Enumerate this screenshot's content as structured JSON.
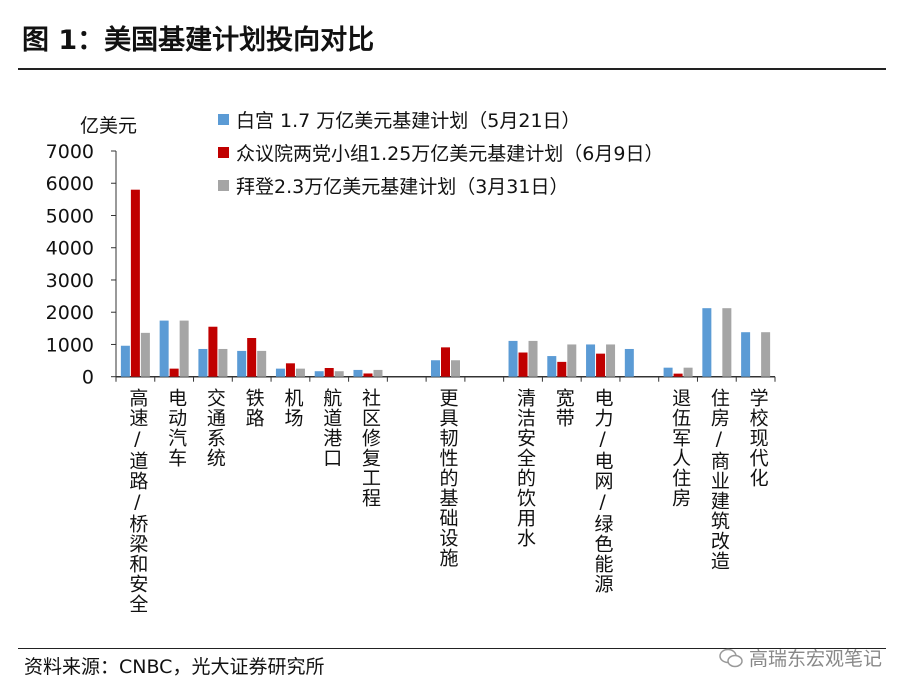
{
  "title": "图 1：美国基建计划投向对比",
  "source": "资料来源：CNBC，光大证券研究所",
  "watermark": "高瑞东宏观笔记",
  "chart_data": {
    "type": "bar",
    "ylabel": "亿美元",
    "ylim": [
      0,
      7000
    ],
    "yticks": [
      0,
      1000,
      2000,
      3000,
      4000,
      5000,
      6000,
      7000
    ],
    "grid": false,
    "legend_position": "top",
    "categories": [
      "高速/道路/桥梁和安全",
      "电动汽车",
      "交通系统",
      "铁路",
      "机场",
      "航道港口",
      "社区修复工程",
      "",
      "更具韧性的基础设施",
      "",
      "清洁安全的饮用水",
      "宽带",
      "电力/电网/绿色能源",
      "",
      "退伍军人住房",
      "住房/商业建筑改造",
      "学校现代化"
    ],
    "series": [
      {
        "name": "白宫 1.7 万亿美元基建计划（5月21日）",
        "color": "#5b9bd5",
        "values": [
          960,
          1740,
          860,
          800,
          250,
          170,
          210,
          null,
          510,
          null,
          1110,
          640,
          1000,
          860,
          280,
          2125,
          1380
        ]
      },
      {
        "name": "众议院两党小组1.25万亿美元基建计划（6月9日）",
        "color": "#c00000",
        "values": [
          5800,
          250,
          1550,
          1200,
          415,
          270,
          100,
          null,
          910,
          null,
          750,
          460,
          715,
          null,
          95,
          null,
          null
        ]
      },
      {
        "name": "拜登2.3万亿美元基建计划（3月31日）",
        "color": "#a5a5a5",
        "values": [
          1360,
          1740,
          860,
          800,
          250,
          170,
          210,
          null,
          510,
          null,
          1110,
          1000,
          1000,
          null,
          280,
          2125,
          1380
        ]
      }
    ]
  }
}
